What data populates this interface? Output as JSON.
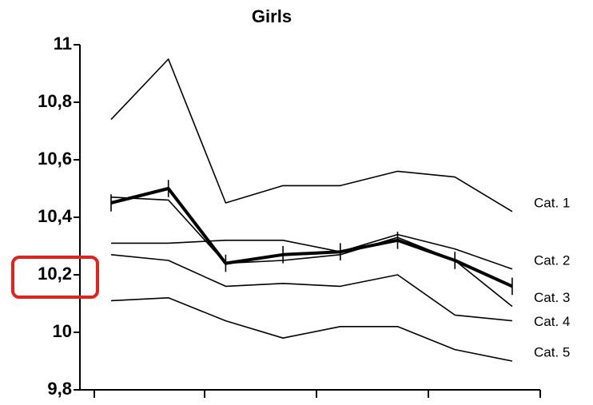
{
  "chart_data": {
    "type": "line",
    "title": "Girls",
    "categories": [
      null,
      null,
      null,
      null,
      null,
      null,
      null,
      null
    ],
    "series": [
      {
        "name": "Cat. 1",
        "color": "#000000",
        "values": [
          10.74,
          10.95,
          10.45,
          10.51,
          10.51,
          10.56,
          10.54,
          10.42
        ]
      },
      {
        "name": "Cat. 2",
        "color": "#000000",
        "values": [
          10.31,
          10.31,
          10.32,
          10.32,
          10.28,
          10.34,
          10.29,
          10.22
        ]
      },
      {
        "name": "Cat. 3",
        "color": "#000000",
        "values": [
          10.47,
          10.46,
          10.24,
          10.25,
          10.27,
          10.33,
          10.25,
          10.09
        ]
      },
      {
        "name": "Cat. 4",
        "color": "#000000",
        "values": [
          10.27,
          10.25,
          10.16,
          10.17,
          10.16,
          10.2,
          10.06,
          10.04
        ]
      },
      {
        "name": "Cat. 5",
        "color": "#000000",
        "values": [
          10.11,
          10.12,
          10.04,
          9.98,
          10.02,
          10.02,
          9.94,
          9.9
        ]
      },
      {
        "color": "#000000",
        "values": [
          10.45,
          10.5,
          10.24,
          10.27,
          10.28,
          10.32,
          10.25,
          10.16
        ],
        "errors": [
          0.03,
          0.03,
          0.03,
          0.03,
          0.03,
          0.03,
          0.03,
          0.03
        ]
      }
    ],
    "ylim": [
      9.8,
      11
    ],
    "yticks": [
      {
        "value": 9.8,
        "label": "9,8"
      },
      10,
      {
        "value": 10.2,
        "label": "10,2"
      },
      {
        "value": 10.4,
        "label": "10,4"
      },
      {
        "value": 10.6,
        "label": "10,6"
      },
      {
        "value": 10.8,
        "label": "10,8"
      },
      11
    ],
    "grid": false
  }
}
